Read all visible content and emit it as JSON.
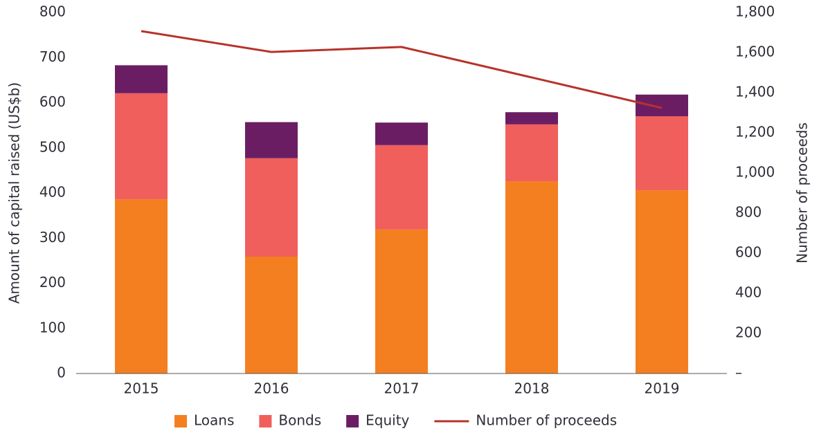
{
  "chart_data": {
    "type": "bar",
    "categories": [
      "2015",
      "2016",
      "2017",
      "2018",
      "2019"
    ],
    "series": [
      {
        "name": "Loans",
        "color": "#f47f20",
        "values": [
          386,
          259,
          319,
          426,
          406
        ]
      },
      {
        "name": "Bonds",
        "color": "#f05f5b",
        "values": [
          235,
          218,
          187,
          126,
          164
        ]
      },
      {
        "name": "Equity",
        "color": "#6b1d64",
        "values": [
          62,
          80,
          50,
          27,
          48
        ]
      },
      {
        "name": "Number of proceeds",
        "color": "#b8322a",
        "type": "line",
        "axis": "y2",
        "values": [
          1707,
          1603,
          1628,
          1476,
          1324
        ]
      }
    ],
    "ylabel": "Amount of capital raised (US$b)",
    "y2label": "Number of proceeds",
    "ylim": [
      0,
      800
    ],
    "yticks": [
      0,
      100,
      200,
      300,
      400,
      500,
      600,
      700,
      800
    ],
    "y2lim": [
      0,
      1800
    ],
    "y2ticks": [
      {
        "value": 0,
        "label": "–"
      },
      200,
      400,
      600,
      800,
      {
        "value": 1000,
        "label": "1,000"
      },
      {
        "value": 1200,
        "label": "1,200"
      },
      {
        "value": 1400,
        "label": "1,400"
      },
      {
        "value": 1600,
        "label": "1,600"
      },
      {
        "value": 1800,
        "label": "1,800"
      }
    ],
    "legend": "bottom"
  }
}
